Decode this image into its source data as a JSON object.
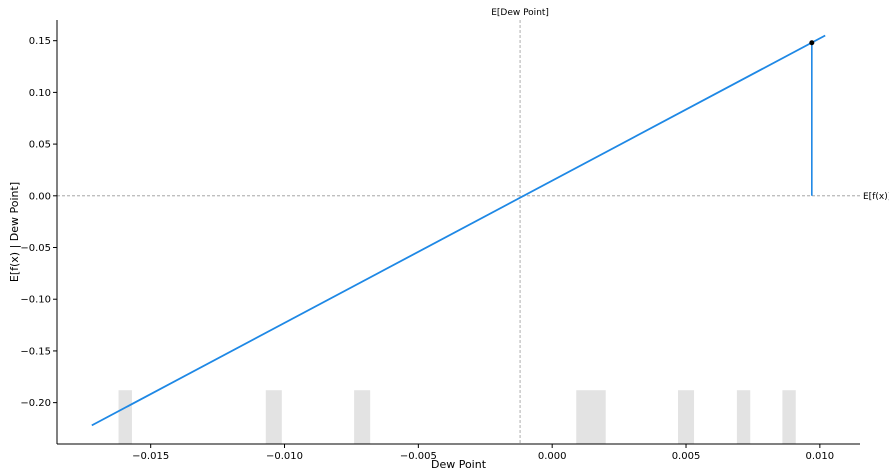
{
  "chart_data": {
    "type": "line",
    "xlabel": "Dew Point",
    "ylabel": "E[f(x) | Dew Point]",
    "xlim": [
      -0.0185,
      0.0115
    ],
    "ylim": [
      -0.24,
      0.17
    ],
    "x_ticks": [
      -0.015,
      -0.01,
      -0.005,
      0.0,
      0.005,
      0.01
    ],
    "x_tick_labels": [
      "−0.015",
      "−0.010",
      "−0.005",
      "0.000",
      "0.005",
      "0.010"
    ],
    "y_ticks": [
      -0.2,
      -0.15,
      -0.1,
      -0.05,
      0.0,
      0.05,
      0.1,
      0.15
    ],
    "y_tick_labels": [
      "−0.20",
      "−0.15",
      "−0.10",
      "−0.05",
      "0.00",
      "0.05",
      "0.10",
      "0.15"
    ],
    "series": [
      {
        "x": [
          -0.0172,
          0.0102
        ],
        "y": [
          -0.222,
          0.155
        ]
      }
    ],
    "expected_value_x": -0.0012,
    "expected_value_x_label": "E[Dew Point]",
    "expected_value_y": 0.0,
    "expected_value_y_label": "E[f(x)]",
    "highlight_point": {
      "x": 0.0097,
      "y": 0.148
    },
    "histogram": {
      "y_bottom": -0.24,
      "y_top": -0.188,
      "bins": [
        [
          -0.0162,
          -0.0157
        ],
        [
          -0.0107,
          -0.0101
        ],
        [
          -0.0074,
          -0.0068
        ],
        [
          0.0009,
          0.002
        ],
        [
          0.0047,
          0.0053
        ],
        [
          0.0069,
          0.0074
        ],
        [
          0.0086,
          0.0091
        ]
      ]
    },
    "colors": {
      "line": "#1e88e5",
      "histogram": "#e3e3e3",
      "reference": "#999999",
      "point": "#000000"
    },
    "grid": false
  }
}
